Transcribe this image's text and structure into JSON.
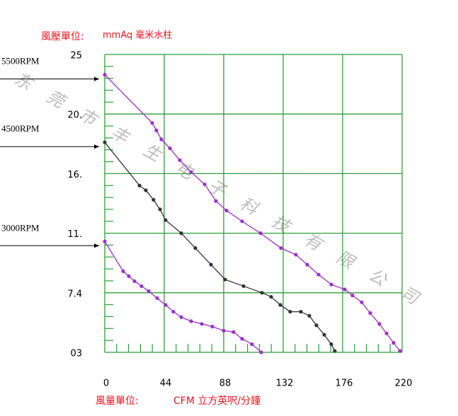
{
  "chart_data": {
    "type": "line",
    "y_label": "風壓單位:",
    "y_unit": "mmAq 毫米水柱",
    "x_label": "風量單位:",
    "x_unit": "CFM 立方英呎/分鐘",
    "watermark": "东莞市丰生电子科技有限公司",
    "xlim": [
      0,
      220
    ],
    "xticks": [
      0,
      44,
      88,
      132,
      176,
      220
    ],
    "ylim": [
      3,
      25
    ],
    "yticks": [
      {
        "value": 3,
        "label": "03"
      },
      {
        "value": 7.4,
        "label": "7.4"
      },
      {
        "value": 11,
        "label": "11."
      },
      {
        "value": 16,
        "label": "16."
      },
      {
        "value": 20,
        "label": "20."
      },
      {
        "value": 25,
        "label": "25"
      }
    ],
    "grid": true,
    "grid_color": "#2f9e3a",
    "series": [
      {
        "name": "5500RPM",
        "color": "#9b30c8",
        "x": [
          0,
          35.1,
          38.2,
          41.9,
          48.2,
          55.5,
          63.9,
          73.9,
          82.2,
          90.1,
          101.6,
          115.2,
          130.4,
          141.4,
          149.8,
          158.2,
          167.6,
          177.6,
          183.3,
          190.1,
          196.4,
          203.2,
          208.5,
          213.7,
          218.4
        ],
        "values": [
          23.3,
          19.4,
          18.9,
          18.3,
          17.7,
          16.9,
          16.1,
          15.1,
          13.7,
          12.9,
          12.0,
          11.0,
          10.1,
          9.7,
          9.1,
          8.5,
          7.9,
          7.6,
          7.2,
          6.7,
          5.9,
          5.1,
          4.4,
          3.7,
          3.1
        ]
      },
      {
        "name": "4500RPM",
        "color": "#333333",
        "x": [
          0,
          25.7,
          30.4,
          36.1,
          40.9,
          45.0,
          56.6,
          67.0,
          78.6,
          89.0,
          102.7,
          116.3,
          123.1,
          129.9,
          137.2,
          145.1,
          151.4,
          156.6,
          162.4,
          167.6,
          170.2
        ],
        "values": [
          18.1,
          15.0,
          14.6,
          13.8,
          13.0,
          12.1,
          11.0,
          10.1,
          9.1,
          8.2,
          7.8,
          7.4,
          7.1,
          6.5,
          6.0,
          6.0,
          5.7,
          5.0,
          4.3,
          3.6,
          3.1
        ]
      },
      {
        "name": "3000RPM",
        "color": "#9b30c8",
        "x": [
          0,
          13.6,
          17.8,
          22.0,
          27.2,
          32.5,
          38.8,
          45.0,
          50.8,
          56.6,
          63.9,
          71.8,
          79.6,
          88.0,
          95.3,
          101.6,
          108.9,
          115.8
        ],
        "values": [
          10.5,
          8.7,
          8.4,
          8.1,
          7.8,
          7.5,
          7.0,
          6.5,
          6.0,
          5.6,
          5.3,
          5.1,
          4.9,
          4.6,
          4.5,
          4.0,
          3.6,
          3.0
        ]
      }
    ]
  }
}
